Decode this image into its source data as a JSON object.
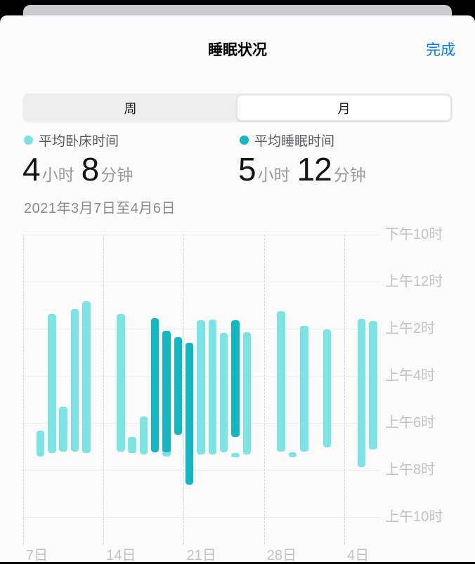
{
  "header": {
    "title": "睡眠状况",
    "done_label": "完成"
  },
  "tabs": {
    "week_label": "周",
    "month_label": "月",
    "selected": "月"
  },
  "legend": {
    "in_bed": {
      "label": "平均卧床时间",
      "color": "#79e3e1"
    },
    "asleep": {
      "label": "平均睡眠时间",
      "color": "#12b7c2"
    }
  },
  "stats": {
    "in_bed": {
      "hours": "4",
      "hours_unit": "小时",
      "minutes": "8",
      "minutes_unit": "分钟"
    },
    "asleep": {
      "hours": "5",
      "hours_unit": "小时",
      "minutes": "12",
      "minutes_unit": "分钟"
    }
  },
  "date_range": "2021年3月7日至4月6日",
  "chart_data": {
    "type": "bar",
    "title": "每日睡眠时间条形图",
    "orientation": "vertical-time-range",
    "y_axis": {
      "side": "right",
      "top_time": "22:00",
      "bottom_time": "10:00",
      "step_hours": 2,
      "labels": [
        "下午10时",
        "上午12时",
        "上午2时",
        "上午4时",
        "上午6时",
        "上午8时",
        "上午10时"
      ]
    },
    "x_axis": {
      "start_date": "2021-03-07",
      "total_days": 31,
      "labels": [
        "7日",
        "14日",
        "21日",
        "28日",
        "4日"
      ],
      "label_day_indices": [
        0,
        7,
        14,
        21,
        28
      ]
    },
    "colors": {
      "in_bed": "#7ce4e2",
      "asleep": "#12b7c2"
    },
    "note": "s/e are decimal hours after 22:00; start/end are clock times",
    "bars": [
      {
        "day_index": 1,
        "date": "3月8日",
        "series": "in_bed",
        "start": "06:20",
        "end": "07:26",
        "s": 8.33,
        "e": 9.43
      },
      {
        "day_index": 2,
        "date": "3月9日",
        "series": "in_bed",
        "start": "01:22",
        "end": "07:17",
        "s": 3.37,
        "e": 9.28
      },
      {
        "day_index": 3,
        "date": "3月10日",
        "series": "in_bed",
        "start": "05:19",
        "end": "07:13",
        "s": 7.31,
        "e": 9.22
      },
      {
        "day_index": 4,
        "date": "3月11日",
        "series": "in_bed",
        "start": "01:10",
        "end": "07:13",
        "s": 3.16,
        "e": 9.22
      },
      {
        "day_index": 5,
        "date": "3月12日",
        "series": "in_bed",
        "start": "00:50",
        "end": "07:17",
        "s": 2.84,
        "e": 9.28
      },
      {
        "day_index": 8,
        "date": "3月15日",
        "series": "in_bed",
        "start": "01:22",
        "end": "07:13",
        "s": 3.37,
        "e": 9.22
      },
      {
        "day_index": 9,
        "date": "3月16日",
        "series": "in_bed",
        "start": "06:36",
        "end": "07:17",
        "s": 8.6,
        "e": 9.28
      },
      {
        "day_index": 10,
        "date": "3月17日",
        "series": "in_bed",
        "start": "05:44",
        "end": "07:20",
        "s": 7.73,
        "e": 9.34
      },
      {
        "day_index": 11,
        "date": "3月18日",
        "series": "asleep",
        "start": "01:33",
        "end": "07:15",
        "s": 3.55,
        "e": 9.25
      },
      {
        "day_index": 12,
        "date": "3月19日",
        "series": "in_bed",
        "start": "02:05",
        "end": "07:26",
        "s": 4.09,
        "e": 9.43
      },
      {
        "day_index": 12,
        "date": "3月19日",
        "series": "asleep",
        "start": "02:05",
        "end": "07:15",
        "s": 4.09,
        "e": 9.25
      },
      {
        "day_index": 13,
        "date": "3月20日",
        "series": "asleep",
        "start": "02:21",
        "end": "06:30",
        "s": 4.36,
        "e": 8.51
      },
      {
        "day_index": 14,
        "date": "3月21日",
        "series": "asleep",
        "start": "02:36",
        "end": "08:38",
        "s": 4.6,
        "e": 10.63
      },
      {
        "day_index": 15,
        "date": "3月22日",
        "series": "in_bed",
        "start": "01:38",
        "end": "07:20",
        "s": 3.64,
        "e": 9.34
      },
      {
        "day_index": 16,
        "date": "3月23日",
        "series": "in_bed",
        "start": "01:36",
        "end": "07:20",
        "s": 3.61,
        "e": 9.34
      },
      {
        "day_index": 17,
        "date": "3月24日",
        "series": "in_bed",
        "start": "02:10",
        "end": "07:15",
        "s": 4.18,
        "e": 9.25
      },
      {
        "day_index": 18,
        "date": "3月25日",
        "series": "asleep",
        "start": "01:38",
        "end": "06:36",
        "s": 3.64,
        "e": 8.6
      },
      {
        "day_index": 18,
        "date": "3月25日",
        "series": "in_bed",
        "start": "07:17",
        "end": "07:28",
        "s": 9.28,
        "e": 9.46
      },
      {
        "day_index": 19,
        "date": "3月26日",
        "series": "in_bed",
        "start": "02:09",
        "end": "07:20",
        "s": 4.15,
        "e": 9.34
      },
      {
        "day_index": 22,
        "date": "3月29日",
        "series": "in_bed",
        "start": "01:15",
        "end": "07:13",
        "s": 3.25,
        "e": 9.22
      },
      {
        "day_index": 23,
        "date": "3月30日",
        "series": "in_bed",
        "start": "07:15",
        "end": "07:28",
        "s": 9.25,
        "e": 9.46
      },
      {
        "day_index": 24,
        "date": "3月31日",
        "series": "in_bed",
        "start": "01:53",
        "end": "07:13",
        "s": 3.88,
        "e": 9.22
      },
      {
        "day_index": 26,
        "date": "4月2日",
        "series": "in_bed",
        "start": "02:02",
        "end": "07:02",
        "s": 4.03,
        "e": 9.04
      },
      {
        "day_index": 29,
        "date": "4月5日",
        "series": "in_bed",
        "start": "01:35",
        "end": "07:53",
        "s": 3.58,
        "e": 9.88
      },
      {
        "day_index": 30,
        "date": "4月6日",
        "series": "in_bed",
        "start": "01:40",
        "end": "07:08",
        "s": 3.67,
        "e": 9.13
      }
    ]
  }
}
